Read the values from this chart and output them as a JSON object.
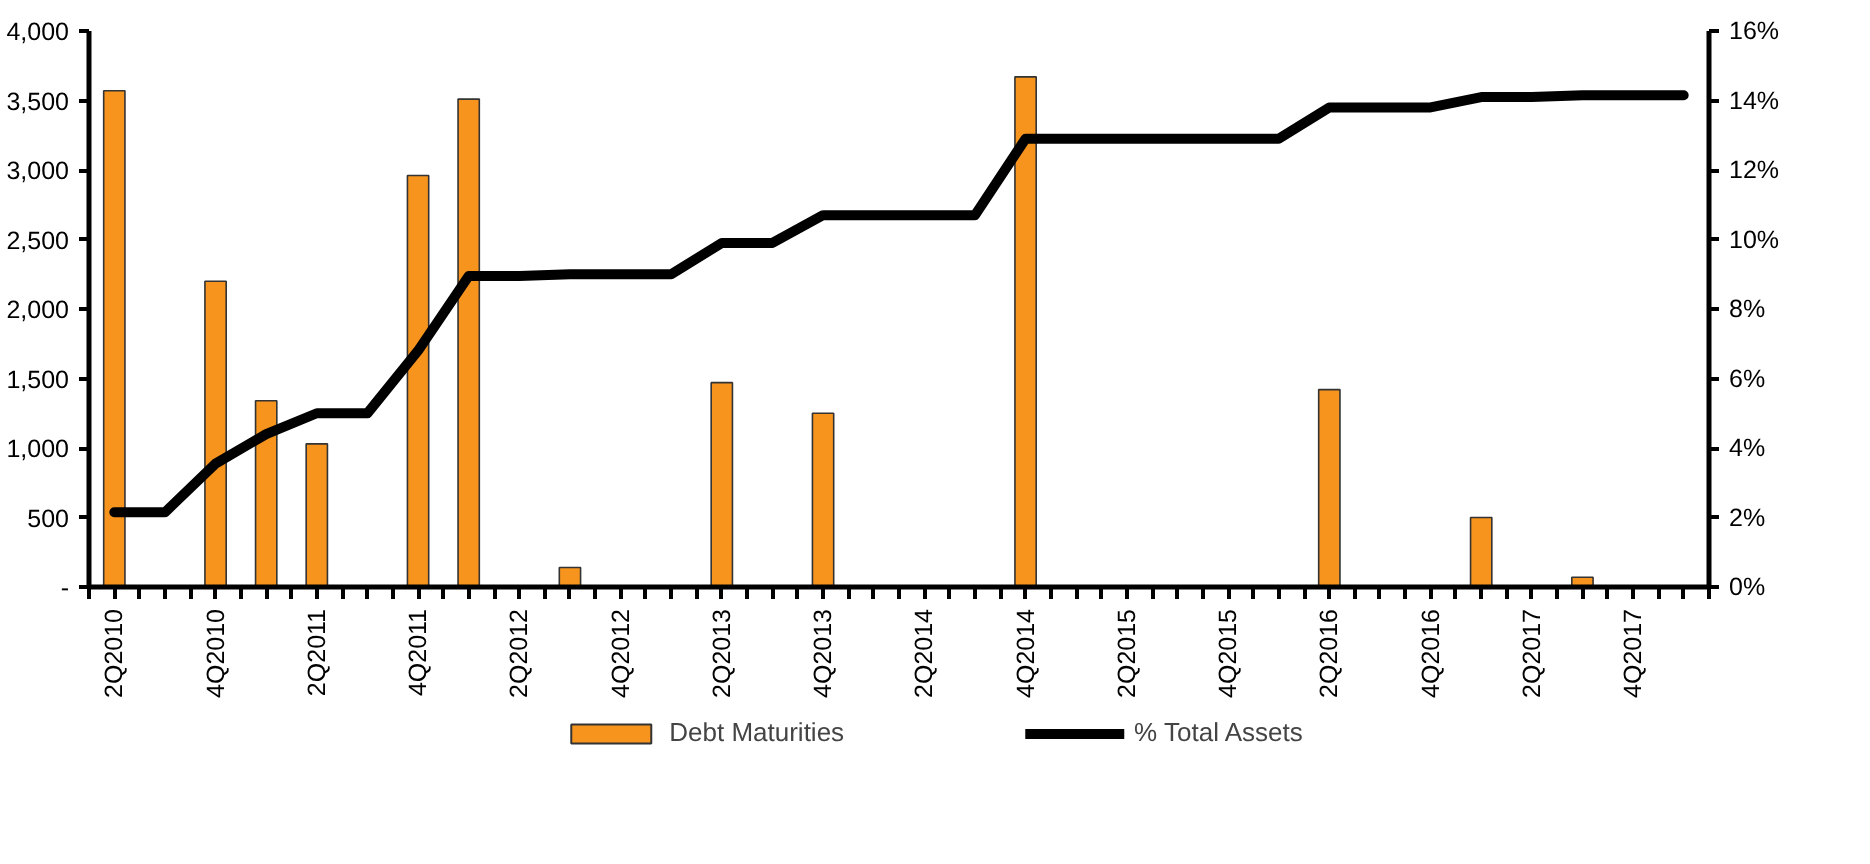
{
  "chart_data": {
    "type": "bar",
    "categories": [
      "2Q2010",
      null,
      "4Q2010",
      null,
      "2Q2011",
      null,
      "4Q2011",
      null,
      "2Q2012",
      null,
      "4Q2012",
      null,
      "2Q2013",
      null,
      "4Q2013",
      null,
      "2Q2014",
      null,
      "4Q2014",
      null,
      "2Q2015",
      null,
      "4Q2015",
      null,
      "2Q2016",
      null,
      "4Q2016",
      null,
      "2Q2017",
      null,
      "4Q2017",
      null
    ],
    "series": [
      {
        "name": "Debt Maturities",
        "color": "#f7941d",
        "values": [
          3570,
          null,
          2200,
          1340,
          1030,
          null,
          2960,
          3510,
          null,
          140,
          null,
          null,
          1470,
          null,
          1250,
          null,
          null,
          null,
          3670,
          null,
          null,
          null,
          null,
          null,
          1420,
          null,
          null,
          500,
          null,
          70,
          null,
          null
        ]
      },
      {
        "name": "% Total Assets",
        "type": "line",
        "axis": "y2",
        "color": "#000000",
        "values": [
          2.15,
          2.15,
          3.55,
          4.4,
          5.0,
          5.0,
          6.8,
          8.95,
          8.95,
          9.0,
          9.0,
          9.0,
          9.9,
          9.9,
          10.7,
          10.7,
          10.7,
          10.7,
          12.9,
          12.9,
          12.9,
          12.9,
          12.9,
          12.9,
          13.8,
          13.8,
          13.8,
          14.1,
          14.1,
          14.15,
          14.15,
          14.15
        ]
      }
    ],
    "ylim": [
      0,
      4000
    ],
    "yticks": [
      {
        "value": 0,
        "label": "-"
      },
      500,
      {
        "value": 1000,
        "label": "1,000"
      },
      {
        "value": 1500,
        "label": "1,500"
      },
      {
        "value": 2000,
        "label": "2,000"
      },
      {
        "value": 2500,
        "label": "2,500"
      },
      {
        "value": 3000,
        "label": "3,000"
      },
      {
        "value": 3500,
        "label": "3,500"
      },
      {
        "value": 4000,
        "label": "4,000"
      }
    ],
    "y2lim": [
      0,
      16
    ],
    "y2ticks": [
      {
        "value": 0,
        "label": "0%"
      },
      {
        "value": 2,
        "label": "2%"
      },
      {
        "value": 4,
        "label": "4%"
      },
      {
        "value": 6,
        "label": "6%"
      },
      {
        "value": 8,
        "label": "8%"
      },
      {
        "value": 10,
        "label": "10%"
      },
      {
        "value": 12,
        "label": "12%"
      },
      {
        "value": 14,
        "label": "14%"
      },
      {
        "value": 16,
        "label": "16%"
      }
    ],
    "grid": false,
    "legend": "bottom",
    "marker": "none",
    "line_style": "solid"
  }
}
